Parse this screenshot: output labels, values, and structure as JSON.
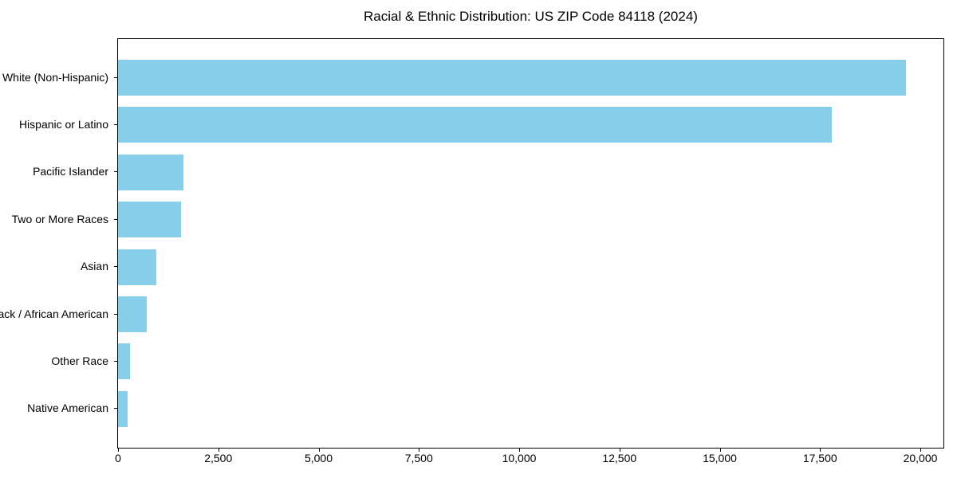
{
  "chart_data": {
    "type": "bar",
    "orientation": "horizontal",
    "title": "Racial & Ethnic Distribution: US ZIP Code 84118 (2024)",
    "categories": [
      "White (Non-Hispanic)",
      "Hispanic or Latino",
      "Pacific Islander",
      "Two or More Races",
      "Asian",
      "Black / African American",
      "Other Race",
      "Native American"
    ],
    "values": [
      19640,
      17790,
      1630,
      1570,
      950,
      715,
      290,
      230
    ],
    "xlabel": "",
    "ylabel": "",
    "xlim": [
      0,
      20576
    ],
    "x_ticks": [
      0,
      2500,
      5000,
      7500,
      10000,
      12500,
      15000,
      17500,
      20000
    ],
    "x_tick_labels": [
      "0",
      "2,500",
      "5,000",
      "7,500",
      "10,000",
      "12,500",
      "15,000",
      "17,500",
      "20,000"
    ],
    "bar_color": "#87CEEB",
    "axis_color": "#000000",
    "background_color": "#ffffff",
    "grid": false,
    "legend": false
  }
}
